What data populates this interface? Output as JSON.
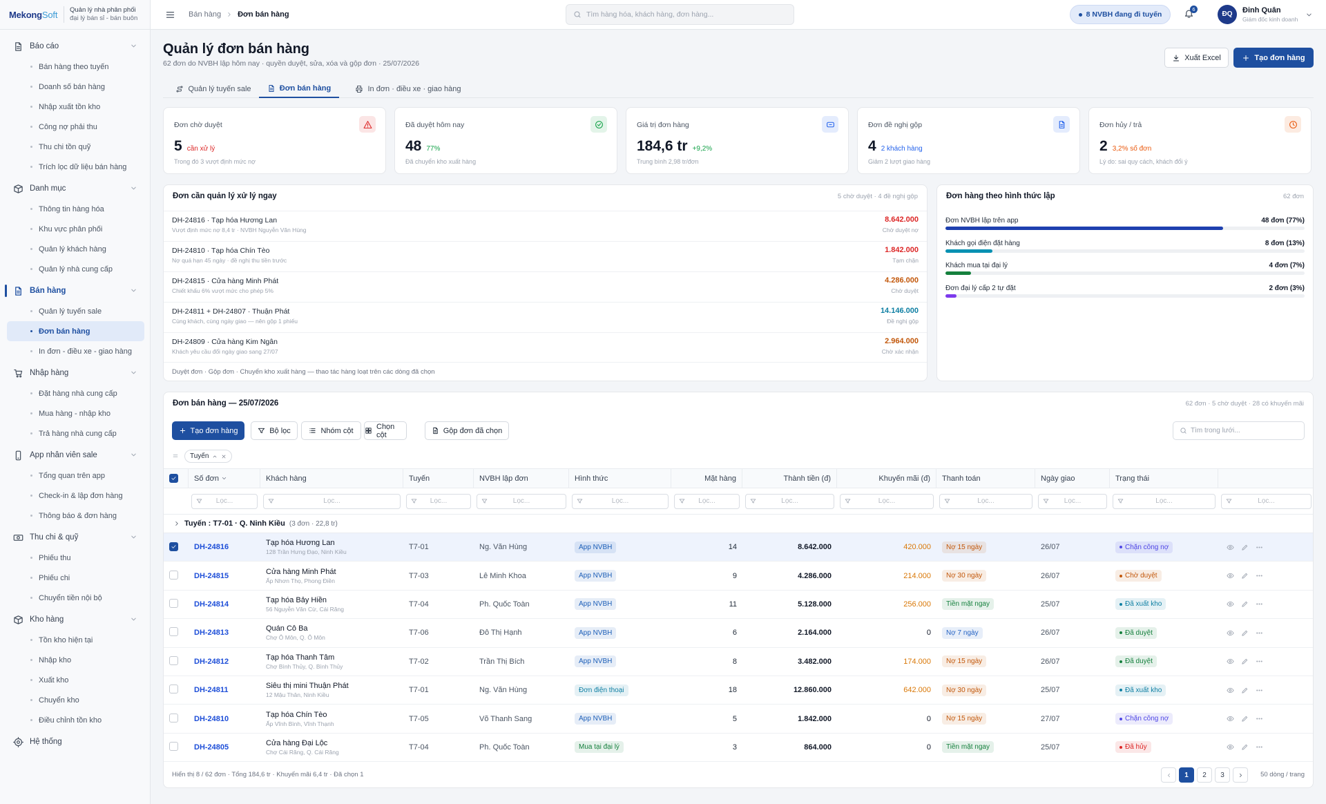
{
  "sidebar": {
    "brand_a": "Mekong",
    "brand_b": "Soft",
    "tagline": [
      "Quản lý nhà phân phối",
      "đại lý bán sỉ - bán buôn"
    ],
    "groups": [
      {
        "label": "Báo cáo",
        "items": [
          "Bán hàng theo tuyến",
          "Doanh số bán hàng",
          "Nhập xuất tồn kho",
          "Công nợ phải thu",
          "Thu chi tồn quỹ",
          "Trích lọc dữ liệu bán hàng"
        ]
      },
      {
        "label": "Danh mục",
        "items": [
          "Thông tin hàng hóa",
          "Khu vực phân phối",
          "Quản lý khách hàng",
          "Quản lý nhà cung cấp"
        ]
      },
      {
        "label": "Bán hàng",
        "active": true,
        "active_item": 1,
        "items": [
          "Quản lý tuyến sale",
          "Đơn bán hàng",
          "In đơn - điều xe - giao hàng"
        ]
      },
      {
        "label": "Nhập hàng",
        "items": [
          "Đặt hàng nhà cung cấp",
          "Mua hàng - nhập kho",
          "Trả hàng nhà cung cấp"
        ]
      },
      {
        "label": "App nhân viên sale",
        "items": [
          "Tổng quan trên app",
          "Check-in & lập đơn hàng",
          "Thông báo & đơn hàng"
        ]
      },
      {
        "label": "Thu chi & quỹ",
        "items": [
          "Phiếu thu",
          "Phiếu chi",
          "Chuyển tiền nội bộ"
        ]
      },
      {
        "label": "Kho hàng",
        "items": [
          "Tồn kho hiện tại",
          "Nhập kho",
          "Xuất kho",
          "Chuyển kho",
          "Điều chỉnh tồn kho"
        ]
      },
      {
        "label": "Hệ thống",
        "items": []
      }
    ]
  },
  "topbar": {
    "breadcrumb": [
      "Bán hàng",
      "Đơn bán hàng"
    ],
    "search_placeholder": "Tìm hàng hóa, khách hàng, đơn hàng...",
    "online": "8 NVBH đang đi tuyến",
    "notifications": "6",
    "user": {
      "initials": "ĐQ",
      "name": "Đinh Quân",
      "role": "Giám đốc kinh doanh"
    }
  },
  "header": {
    "title": "Quản lý đơn bán hàng",
    "subtitle": "62 đơn do NVBH lập hôm nay · quyền duyệt, sửa, xóa và gộp đơn · 25/07/2026",
    "export": "Xuất Excel",
    "create": "Tạo đơn hàng",
    "tabs": [
      "Quản lý tuyến sale",
      "Đơn bán hàng",
      "In đơn · điều xe · giao hàng"
    ],
    "active_tab": 1
  },
  "kpis": [
    {
      "label": "Đơn chờ duyệt",
      "value": "5",
      "note": "cần xử lý",
      "color": "#dc2626",
      "sub": "Trong đó 3 vượt định mức nợ"
    },
    {
      "label": "Đã duyệt hôm nay",
      "value": "48",
      "note": "77%",
      "color": "#16a34a",
      "sub": "Đã chuyển kho xuất hàng"
    },
    {
      "label": "Giá trị đơn hàng",
      "value": "184,6 tr",
      "note": "+9,2%",
      "color": "#16a34a",
      "sub": "Trung bình 2,98 tr/đơn",
      "icon_color": "#2563eb"
    },
    {
      "label": "Đơn đề nghị gộp",
      "value": "4",
      "note": "2 khách hàng",
      "color": "#2563eb",
      "sub": "Giảm 2 lượt giao hàng"
    },
    {
      "label": "Đơn hủy / trả",
      "value": "2",
      "note": "3,2% số đơn",
      "color": "#ea580c",
      "sub": "Lý do: sai quy cách, khách đổi ý"
    }
  ],
  "alerts": {
    "title": "Đơn cần quản lý xử lý ngay",
    "summary": "5 chờ duyệt · 4 đề nghị gộp",
    "items": [
      {
        "title": "DH-24816 · Tạp hóa Hương Lan",
        "desc": "Vượt định mức nợ 8,4 tr · NVBH Nguyễn Văn Hùng",
        "amount": "8.642.000",
        "color": "#dc2626",
        "status": "Chờ duyệt nợ"
      },
      {
        "title": "DH-24810 · Tạp hóa Chín Tèo",
        "desc": "Nợ quá hạn 45 ngày · đề nghị thu tiền trước",
        "amount": "1.842.000",
        "color": "#dc2626",
        "status": "Tạm chặn"
      },
      {
        "title": "DH-24815 · Cửa hàng Minh Phát",
        "desc": "Chiết khấu 6% vượt mức cho phép 5%",
        "amount": "4.286.000",
        "color": "#c2570a",
        "status": "Chờ duyệt"
      },
      {
        "title": "DH-24811 + DH-24807 · Thuận Phát",
        "desc": "Cùng khách, cùng ngày giao — nên gộp 1 phiếu",
        "amount": "14.146.000",
        "color": "#0e7fa3",
        "status": "Đề nghị gộp"
      },
      {
        "title": "DH-24809 · Cửa hàng Kim Ngân",
        "desc": "Khách yêu cầu đổi ngày giao sang 27/07",
        "amount": "2.964.000",
        "color": "#c2570a",
        "status": "Chờ xác nhận"
      }
    ],
    "footer": "Duyệt đơn · Gộp đơn · Chuyển kho xuất hàng — thao tác hàng loạt trên các dòng đã chọn"
  },
  "channels": {
    "title": "Đơn hàng theo hình thức lập",
    "total": "62 đơn",
    "items": [
      {
        "label": "Đơn NVBH lập trên app",
        "value_label": "48 đơn (77%)",
        "pct": 77,
        "color": "#1e40af"
      },
      {
        "label": "Khách gọi điện đặt hàng",
        "value_label": "8 đơn (13%)",
        "pct": 13,
        "color": "#0891b2"
      },
      {
        "label": "Khách mua tại đại lý",
        "value_label": "4 đơn (7%)",
        "pct": 7,
        "color": "#15803d"
      },
      {
        "label": "Đơn đại lý cấp 2 tự đặt",
        "value_label": "2 đơn (3%)",
        "pct": 3,
        "color": "#7c3aed"
      }
    ]
  },
  "table": {
    "title": "Đơn bán hàng — 25/07/2026",
    "summary": "62 đơn · 5 chờ duyệt · 28 có khuyến mãi",
    "toolbar": [
      "Tạo đơn hàng",
      "Bộ lọc",
      "Nhóm cột",
      "Chọn cột",
      "Gộp đơn đã chọn"
    ],
    "search_placeholder": "Tìm trong lưới...",
    "group_chip": "Tuyến",
    "columns": [
      "Số đơn",
      "Khách hàng",
      "Tuyến",
      "NVBH lập đơn",
      "Hình thức",
      "Mặt hàng",
      "Thành tiền (đ)",
      "Khuyến mãi (đ)",
      "Thanh toán",
      "Ngày giao",
      "Trạng thái"
    ],
    "filter_placeholder": "Lọc...",
    "header_checked": true,
    "group": {
      "label": "Tuyến : T7-01 · Q. Ninh Kiều",
      "meta": "(3 đơn · 22,8 tr)"
    },
    "rows": [
      {
        "id": "DH-24816",
        "customer": "Tạp hóa Hương Lan",
        "address": "128 Trần Hưng Đạo, Ninh Kiều",
        "route": "T7-01",
        "staff": "Ng. Văn Hùng",
        "channel": "App NVBH",
        "channel_color": "#1d5fb8",
        "items": "14",
        "total": "8.642.000",
        "promo": "420.000",
        "payment": "Nợ 15 ngày",
        "payment_color": "#c2570a",
        "date": "26/07",
        "status": "Chặn công nợ",
        "status_color": "#4f46e5",
        "selected": true
      },
      {
        "id": "DH-24815",
        "customer": "Cửa hàng Minh Phát",
        "address": "Ấp Nhơn Thọ, Phong Điền",
        "route": "T7-03",
        "staff": "Lê Minh Khoa",
        "channel": "App NVBH",
        "channel_color": "#1d5fb8",
        "items": "9",
        "total": "4.286.000",
        "promo": "214.000",
        "payment": "Nợ 30 ngày",
        "payment_color": "#c2570a",
        "date": "26/07",
        "status": "Chờ duyệt",
        "status_color": "#c2570a"
      },
      {
        "id": "DH-24814",
        "customer": "Tạp hóa Bảy Hiền",
        "address": "56 Nguyễn Văn Cừ, Cái Răng",
        "route": "T7-04",
        "staff": "Ph. Quốc Toàn",
        "channel": "App NVBH",
        "channel_color": "#1d5fb8",
        "items": "11",
        "total": "5.128.000",
        "promo": "256.000",
        "payment": "Tiền mặt ngay",
        "payment_color": "#15803d",
        "date": "25/07",
        "status": "Đã xuất kho",
        "status_color": "#0e7fa3"
      },
      {
        "id": "DH-24813",
        "customer": "Quán Cô Ba",
        "address": "Chợ Ô Môn, Q. Ô Môn",
        "route": "T7-06",
        "staff": "Đỗ Thị Hạnh",
        "channel": "App NVBH",
        "channel_color": "#1d5fb8",
        "items": "6",
        "total": "2.164.000",
        "promo": "0",
        "payment": "Nợ 7 ngày",
        "payment_color": "#2563c4",
        "date": "26/07",
        "status": "Đã duyệt",
        "status_color": "#15803d"
      },
      {
        "id": "DH-24812",
        "customer": "Tạp hóa Thanh Tâm",
        "address": "Chợ Bình Thủy, Q. Bình Thủy",
        "route": "T7-02",
        "staff": "Trần Thị Bích",
        "channel": "App NVBH",
        "channel_color": "#1d5fb8",
        "items": "8",
        "total": "3.482.000",
        "promo": "174.000",
        "payment": "Nợ 15 ngày",
        "payment_color": "#c2570a",
        "date": "26/07",
        "status": "Đã duyệt",
        "status_color": "#15803d"
      },
      {
        "id": "DH-24811",
        "customer": "Siêu thị mini Thuận Phát",
        "address": "12 Mậu Thân, Ninh Kiều",
        "route": "T7-01",
        "staff": "Ng. Văn Hùng",
        "channel": "Đơn điện thoại",
        "channel_color": "#0e7fa3",
        "items": "18",
        "total": "12.860.000",
        "promo": "642.000",
        "payment": "Nợ 30 ngày",
        "payment_color": "#c2570a",
        "date": "25/07",
        "status": "Đã xuất kho",
        "status_color": "#0e7fa3"
      },
      {
        "id": "DH-24810",
        "customer": "Tạp hóa Chín Tèo",
        "address": "Ấp Vĩnh Bình, Vĩnh Thạnh",
        "route": "T7-05",
        "staff": "Võ Thanh Sang",
        "channel": "App NVBH",
        "channel_color": "#1d5fb8",
        "items": "5",
        "total": "1.842.000",
        "promo": "0",
        "payment": "Nợ 15 ngày",
        "payment_color": "#c2570a",
        "date": "27/07",
        "status": "Chặn công nợ",
        "status_color": "#4f46e5"
      },
      {
        "id": "DH-24805",
        "customer": "Cửa hàng Đại Lộc",
        "address": "Chợ Cái Răng, Q. Cái Răng",
        "route": "T7-04",
        "staff": "Ph. Quốc Toàn",
        "channel": "Mua tại đại lý",
        "channel_color": "#15803d",
        "items": "3",
        "total": "864.000",
        "promo": "0",
        "payment": "Tiền mặt ngay",
        "payment_color": "#15803d",
        "date": "25/07",
        "status": "Đã hủy",
        "status_color": "#dc2626"
      }
    ],
    "footer": "Hiển thị 8 / 62 đơn · Tổng 184,6 tr · Khuyến mãi 6,4 tr · Đã chọn 1",
    "pages": [
      "1",
      "2",
      "3"
    ],
    "active_page": 0,
    "page_size": "50 dòng / trang"
  }
}
